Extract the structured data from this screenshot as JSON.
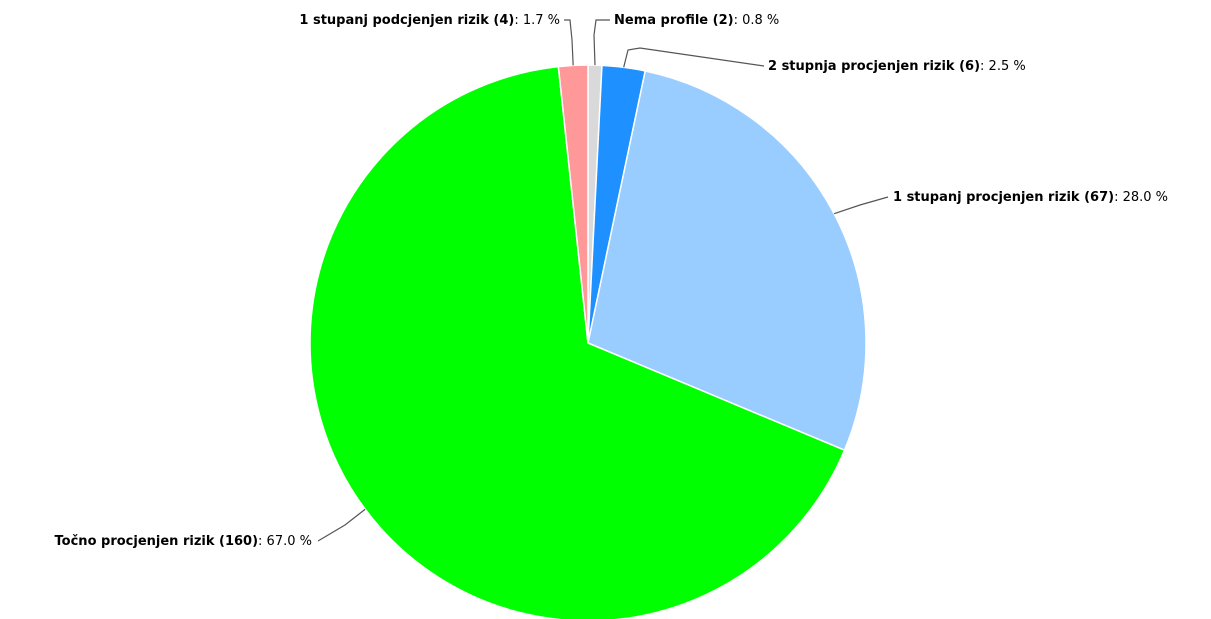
{
  "chart_data": {
    "type": "pie",
    "categories": [
      "Nema profile (2)",
      "2 stupnja procjenjen rizik (6)",
      "1 stupanj procjenjen rizik (67)",
      "Točno procjenjen rizik (160)",
      "1 stupanj podcjenjen rizik (4)"
    ],
    "values": [
      0.8,
      2.5,
      28.0,
      67.0,
      1.7
    ],
    "value_labels": [
      ": 0.8 %",
      ": 2.5 %",
      ": 28.0 %",
      ": 67.0 %",
      ": 1.7 %"
    ],
    "colors": [
      "#d9d9d9",
      "#1e90ff",
      "#99ccff",
      "#00ff00",
      "#ff9999"
    ]
  }
}
